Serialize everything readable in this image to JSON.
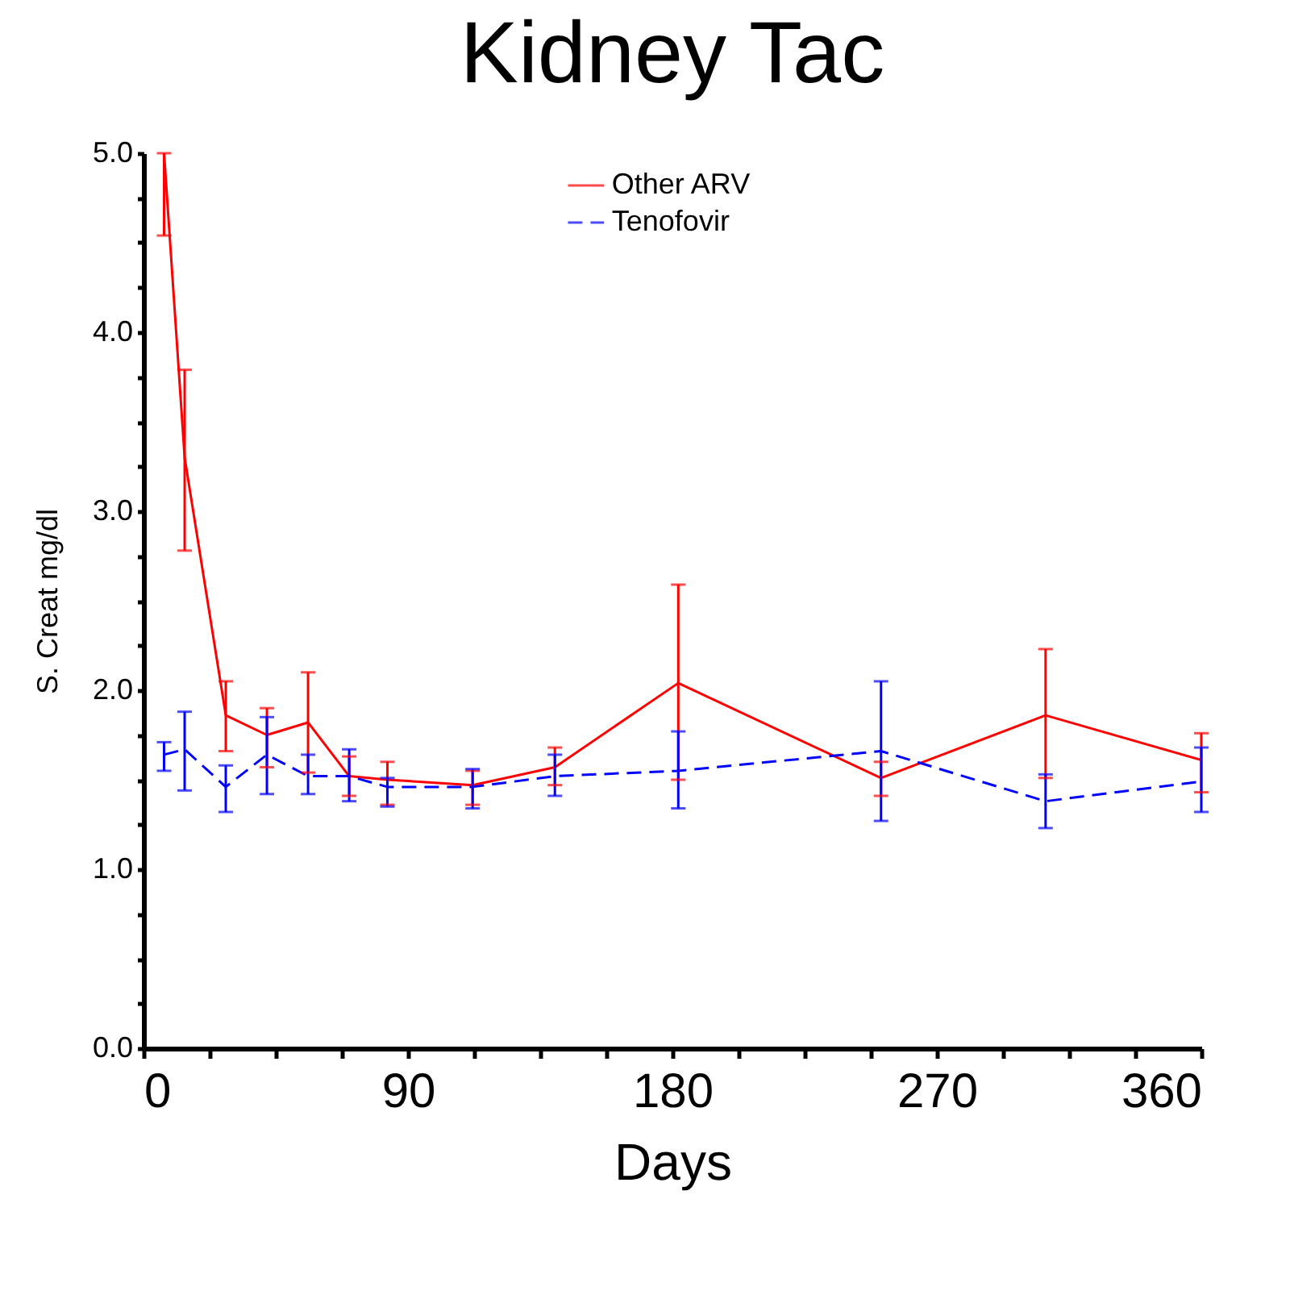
{
  "chart_data": {
    "type": "line",
    "title": "Kidney Tac",
    "xlabel": "Days",
    "ylabel": "S. Creat mg/dl",
    "xlim": [
      0,
      360
    ],
    "ylim": [
      0,
      5
    ],
    "xticks": [
      0,
      {
        "value": 22.5,
        "label": null
      },
      {
        "value": 45,
        "label": null
      },
      {
        "value": 67.5,
        "label": null
      },
      90,
      {
        "value": 112.5,
        "label": null
      },
      {
        "value": 135,
        "label": null
      },
      {
        "value": 157.5,
        "label": null
      },
      180,
      {
        "value": 202.5,
        "label": null
      },
      {
        "value": 225,
        "label": null
      },
      {
        "value": 247.5,
        "label": null
      },
      270,
      {
        "value": 292.5,
        "label": null
      },
      {
        "value": 315,
        "label": null
      },
      {
        "value": 337.5,
        "label": null
      },
      360
    ],
    "yticks": [
      {
        "value": 0,
        "label": "0.0"
      },
      {
        "value": 0.25,
        "label": null
      },
      {
        "value": 0.5,
        "label": null
      },
      {
        "value": 0.75,
        "label": null
      },
      {
        "value": 1,
        "label": "1.0"
      },
      {
        "value": 1.25,
        "label": null
      },
      {
        "value": 1.5,
        "label": null
      },
      {
        "value": 1.75,
        "label": null
      },
      {
        "value": 2,
        "label": "2.0"
      },
      {
        "value": 2.25,
        "label": null
      },
      {
        "value": 2.5,
        "label": null
      },
      {
        "value": 2.75,
        "label": null
      },
      {
        "value": 3,
        "label": "3.0"
      },
      {
        "value": 3.25,
        "label": null
      },
      {
        "value": 3.5,
        "label": null
      },
      {
        "value": 3.75,
        "label": null
      },
      {
        "value": 4,
        "label": "4.0"
      },
      {
        "value": 4.25,
        "label": null
      },
      {
        "value": 4.5,
        "label": null
      },
      {
        "value": 4.75,
        "label": null
      },
      {
        "value": 5,
        "label": "5.0"
      }
    ],
    "legend": "top",
    "marker": "none",
    "grid": false,
    "x": [
      7,
      14,
      28,
      42,
      56,
      70,
      83,
      112,
      140,
      182,
      251,
      307,
      360
    ],
    "series": [
      {
        "name": "Other ARV",
        "color": "#ff0000",
        "line_style": "solid",
        "values": [
          5.0,
          3.3,
          1.86,
          1.75,
          1.82,
          1.52,
          1.5,
          1.47,
          1.57,
          2.04,
          1.51,
          1.86,
          1.61
        ],
        "errors": [
          [
            4.54,
            5.0
          ],
          [
            2.78,
            3.79
          ],
          [
            1.66,
            2.05
          ],
          [
            1.57,
            1.9
          ],
          [
            1.54,
            2.1
          ],
          [
            1.41,
            1.63
          ],
          [
            1.36,
            1.6
          ],
          [
            1.36,
            1.55
          ],
          [
            1.47,
            1.68
          ],
          [
            1.5,
            2.59
          ],
          [
            1.41,
            1.6
          ],
          [
            1.51,
            2.23
          ],
          [
            1.43,
            1.76
          ]
        ]
      },
      {
        "name": "Tenofovir",
        "color": "#0000ff",
        "line_style": "dashed",
        "values": [
          1.64,
          1.67,
          1.46,
          1.64,
          1.52,
          1.52,
          1.46,
          1.46,
          1.52,
          1.55,
          1.66,
          1.38,
          1.49
        ],
        "errors": [
          [
            1.55,
            1.71
          ],
          [
            1.44,
            1.88
          ],
          [
            1.32,
            1.58
          ],
          [
            1.42,
            1.85
          ],
          [
            1.42,
            1.64
          ],
          [
            1.38,
            1.67
          ],
          [
            1.35,
            1.51
          ],
          [
            1.34,
            1.56
          ],
          [
            1.41,
            1.64
          ],
          [
            1.34,
            1.77
          ],
          [
            1.27,
            2.05
          ],
          [
            1.23,
            1.53
          ],
          [
            1.32,
            1.68
          ]
        ]
      }
    ]
  }
}
